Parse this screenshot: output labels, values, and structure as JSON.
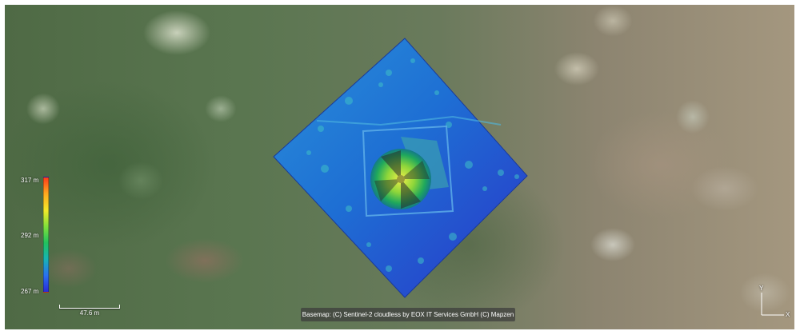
{
  "legend": {
    "max_label": "317 m",
    "mid_label": "292 m",
    "min_label": "267 m",
    "range_m": [
      267,
      317
    ],
    "ramp_colors": [
      "#ff3a1a",
      "#ffa81e",
      "#f2ea2a",
      "#7fe03b",
      "#22c25d",
      "#17b5b2",
      "#2a6ff0",
      "#2a2ad8"
    ]
  },
  "scale_bar": {
    "label": "47.6 m"
  },
  "attribution": {
    "text": "Basemap: (C) Sentinel-2 cloudless by EOX IT Services GmbH (C) Mapzen"
  },
  "axes": {
    "y_label": "Y",
    "x_label": "X"
  },
  "colors": {
    "dsm_low": "#2a4fd0",
    "dsm_mid": "#1f8fbf",
    "dsm_high": "#2fc06a",
    "dsm_peak": "#e8e040",
    "ui_text": "#ffffff"
  }
}
